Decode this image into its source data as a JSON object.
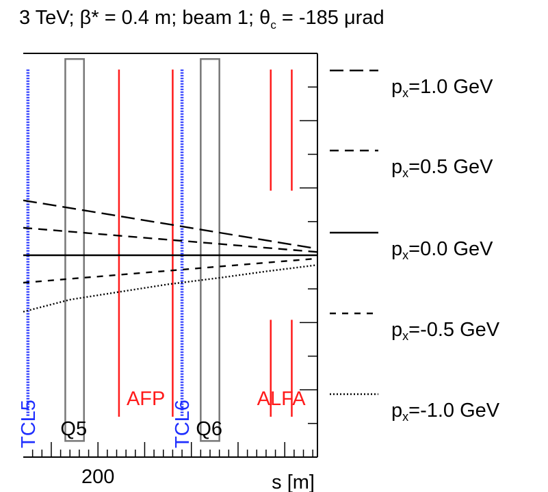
{
  "chart_data": {
    "type": "line",
    "title": {
      "prefix": "3 TeV; β* = 0.4 m; beam 1; θ",
      "sub": "c",
      "suffix": " = -185 μrad"
    },
    "xlabel": "s [m]",
    "xlim": [
      184,
      247
    ],
    "ylim": [
      -2.5,
      2.5
    ],
    "x_ticks_labeled": [
      "200"
    ],
    "series": [
      {
        "name": "px=1.0 GeV",
        "label_main": "p",
        "label_sub": "x",
        "label_value": "=1.0 GeV",
        "style": "longdash",
        "x": [
          184,
          247
        ],
        "y": [
          0.68,
          0.08
        ]
      },
      {
        "name": "px=0.5 GeV",
        "label_main": "p",
        "label_sub": "x",
        "label_value": "=0.5 GeV",
        "style": "dash",
        "x": [
          184,
          247
        ],
        "y": [
          0.34,
          0.04
        ]
      },
      {
        "name": "px=0.0 GeV",
        "label_main": "p",
        "label_sub": "x",
        "label_value": "=0.0 GeV",
        "style": "solid",
        "x": [
          184,
          247
        ],
        "y": [
          0.0,
          0.0
        ]
      },
      {
        "name": "px=-0.5 GeV",
        "label_main": "p",
        "label_sub": "x",
        "label_value": "=-0.5 GeV",
        "style": "shortdash",
        "x": [
          184,
          247
        ],
        "y": [
          -0.34,
          -0.04
        ]
      },
      {
        "name": "px=-1.0 GeV",
        "label_main": "p",
        "label_sub": "x",
        "label_value": "=-1.0 GeV",
        "style": "dotted",
        "x": [
          184,
          194,
          205,
          215,
          226,
          236,
          247
        ],
        "y": [
          -0.7,
          -0.55,
          -0.45,
          -0.36,
          -0.28,
          -0.2,
          -0.12
        ]
      }
    ],
    "elements": [
      {
        "label": "TCL5",
        "type": "collimator",
        "color": "#1f2fff",
        "s": 185
      },
      {
        "label": "Q5",
        "type": "quadrupole",
        "color": "#777777",
        "s_start": 193,
        "s_end": 197
      },
      {
        "label": "AFP",
        "type": "detector",
        "color": "#ff1a1a",
        "s_list": [
          204.5,
          216
        ]
      },
      {
        "label": "TCL6",
        "type": "collimator",
        "color": "#1f2fff",
        "s": 218
      },
      {
        "label": "Q6",
        "type": "quadrupole",
        "color": "#777777",
        "s_start": 222,
        "s_end": 226
      },
      {
        "label": "ALFA",
        "type": "detector",
        "color": "#ff1a1a",
        "s_list": [
          237,
          241.5
        ]
      }
    ],
    "grid": false,
    "legend_position": "right"
  }
}
